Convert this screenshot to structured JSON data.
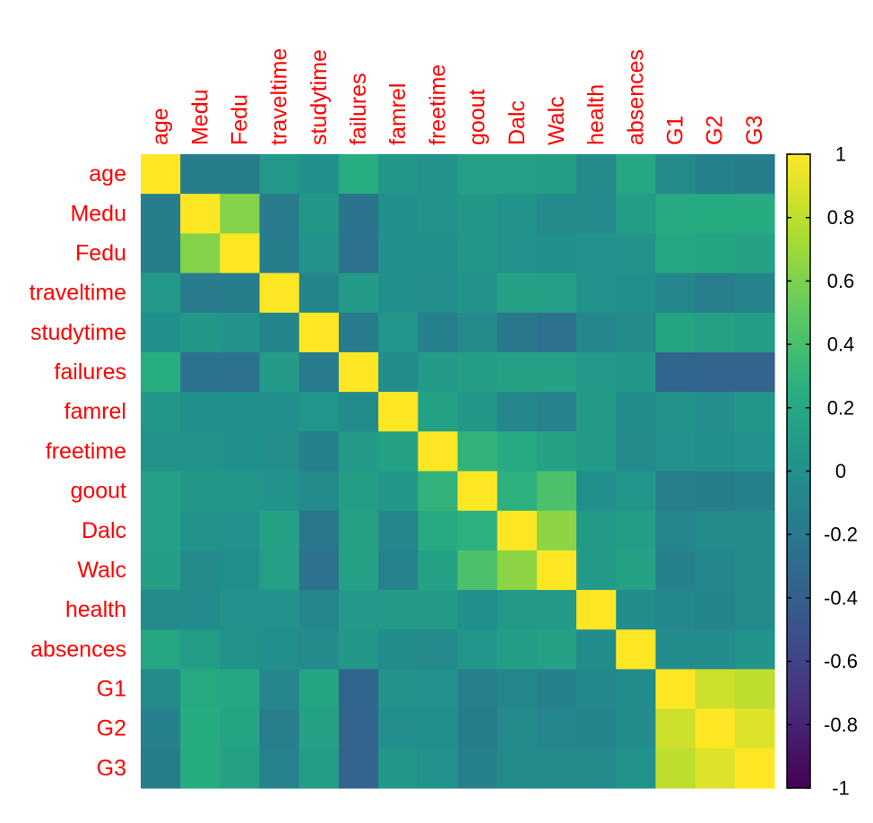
{
  "chart_data": {
    "type": "heatmap",
    "title": "",
    "xlabel": "",
    "ylabel": "",
    "variables": [
      "age",
      "Medu",
      "Fedu",
      "traveltime",
      "studytime",
      "failures",
      "famrel",
      "freetime",
      "goout",
      "Dalc",
      "Walc",
      "health",
      "absences",
      "G1",
      "G2",
      "G3"
    ],
    "matrix": [
      [
        1.0,
        -0.16,
        -0.16,
        0.07,
        0.0,
        0.24,
        0.05,
        0.02,
        0.13,
        0.13,
        0.12,
        -0.06,
        0.18,
        -0.06,
        -0.14,
        -0.16
      ],
      [
        -0.16,
        1.0,
        0.62,
        -0.17,
        0.06,
        -0.24,
        -0.0,
        0.03,
        0.06,
        0.02,
        -0.05,
        -0.05,
        0.1,
        0.21,
        0.22,
        0.22
      ],
      [
        -0.16,
        0.62,
        1.0,
        -0.16,
        0.03,
        -0.25,
        -0.0,
        0.0,
        0.05,
        0.01,
        -0.01,
        0.01,
        0.02,
        0.19,
        0.16,
        0.15
      ],
      [
        0.07,
        -0.17,
        -0.16,
        1.0,
        -0.1,
        0.09,
        -0.01,
        -0.02,
        0.03,
        0.14,
        0.13,
        0.01,
        -0.01,
        -0.09,
        -0.15,
        -0.12
      ],
      [
        0.0,
        0.06,
        0.03,
        -0.1,
        1.0,
        -0.17,
        0.04,
        -0.14,
        -0.06,
        -0.2,
        -0.25,
        -0.08,
        -0.06,
        0.16,
        0.14,
        0.1
      ],
      [
        0.24,
        -0.24,
        -0.25,
        0.09,
        -0.17,
        1.0,
        -0.04,
        0.09,
        0.12,
        0.14,
        0.14,
        0.07,
        0.06,
        -0.35,
        -0.36,
        -0.36
      ],
      [
        0.05,
        -0.0,
        -0.0,
        -0.01,
        0.04,
        -0.04,
        1.0,
        0.15,
        0.06,
        -0.08,
        -0.11,
        0.09,
        -0.04,
        0.02,
        -0.02,
        0.05
      ],
      [
        0.02,
        0.03,
        0.0,
        -0.02,
        -0.14,
        0.09,
        0.15,
        1.0,
        0.29,
        0.21,
        0.15,
        0.08,
        -0.06,
        0.01,
        -0.01,
        0.01
      ],
      [
        0.13,
        0.06,
        0.05,
        0.03,
        -0.06,
        0.12,
        0.06,
        0.29,
        1.0,
        0.27,
        0.42,
        -0.01,
        0.04,
        -0.15,
        -0.16,
        -0.13
      ],
      [
        0.13,
        0.02,
        0.01,
        0.14,
        -0.2,
        0.14,
        -0.08,
        0.21,
        0.27,
        1.0,
        0.65,
        0.08,
        0.11,
        -0.09,
        -0.06,
        -0.05
      ],
      [
        0.12,
        -0.05,
        -0.01,
        0.13,
        -0.25,
        0.14,
        -0.11,
        0.15,
        0.42,
        0.65,
        1.0,
        0.09,
        0.14,
        -0.13,
        -0.08,
        -0.05
      ],
      [
        -0.06,
        -0.05,
        0.01,
        0.01,
        -0.08,
        0.07,
        0.09,
        0.08,
        -0.01,
        0.08,
        0.09,
        1.0,
        -0.03,
        -0.07,
        -0.1,
        -0.06
      ],
      [
        0.18,
        0.1,
        0.02,
        -0.01,
        -0.06,
        0.06,
        -0.04,
        -0.06,
        0.04,
        0.11,
        0.14,
        -0.03,
        1.0,
        -0.03,
        -0.03,
        0.03
      ],
      [
        -0.06,
        0.21,
        0.19,
        -0.09,
        0.16,
        -0.35,
        0.02,
        0.01,
        -0.15,
        -0.09,
        -0.13,
        -0.07,
        -0.03,
        1.0,
        0.85,
        0.8
      ],
      [
        -0.14,
        0.22,
        0.16,
        -0.15,
        0.14,
        -0.36,
        -0.02,
        -0.01,
        -0.16,
        -0.06,
        -0.08,
        -0.1,
        -0.03,
        0.85,
        1.0,
        0.9
      ],
      [
        -0.16,
        0.22,
        0.15,
        -0.12,
        0.1,
        -0.36,
        0.05,
        0.01,
        -0.13,
        -0.05,
        -0.05,
        -0.06,
        0.03,
        0.8,
        0.9,
        1.0
      ]
    ],
    "colorscale": "viridis",
    "range": [
      -1,
      1
    ],
    "colorbar_ticks": [
      "1",
      "0.8",
      "0.6",
      "0.4",
      "0.2",
      "0",
      "-0.2",
      "-0.4",
      "-0.6",
      "-0.8",
      "-1"
    ],
    "label_color": "#ff0000",
    "grid": false,
    "legend": "right colorbar"
  }
}
